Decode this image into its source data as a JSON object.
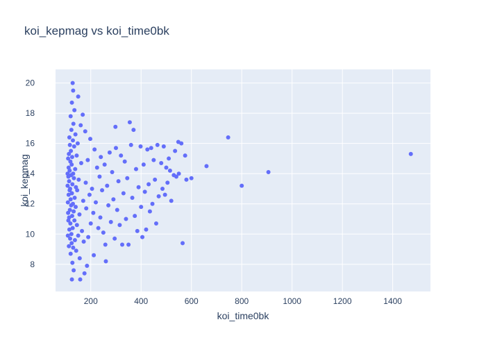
{
  "colors": {
    "plot_background": "#e5ecf6",
    "paper_background": "#ffffff",
    "marker": "#636efa",
    "text": "#2a3f5f",
    "grid": "#ffffff"
  },
  "chart_data": {
    "type": "scatter",
    "title": "koi_kepmag vs koi_time0bk",
    "xlabel": "koi_time0bk",
    "ylabel": "koi_kepmag",
    "xlim": [
      60,
      1550
    ],
    "ylim": [
      6.2,
      20.9
    ],
    "xticks": [
      200,
      400,
      600,
      800,
      1000,
      1200,
      1400
    ],
    "xtick_labels": [
      "200",
      "400",
      "600",
      "800",
      "1000",
      "1200",
      "1400"
    ],
    "yticks": [
      8,
      10,
      12,
      14,
      16,
      18,
      20
    ],
    "ytick_labels": [
      "8",
      "10",
      "12",
      "14",
      "16",
      "18",
      "20"
    ],
    "grid": true,
    "legend": "none",
    "series": [
      {
        "color": "#636efa",
        "points": [
          [
            1472,
            15.3
          ],
          [
            906,
            14.1
          ],
          [
            800,
            13.2
          ],
          [
            746,
            16.4
          ],
          [
            660,
            14.5
          ],
          [
            600,
            13.7
          ],
          [
            580,
            13.6
          ],
          [
            575,
            15.2
          ],
          [
            560,
            16.0
          ],
          [
            565,
            9.4
          ],
          [
            550,
            14.0
          ],
          [
            548,
            16.1
          ],
          [
            540,
            13.8
          ],
          [
            535,
            15.5
          ],
          [
            530,
            13.9
          ],
          [
            520,
            12.2
          ],
          [
            515,
            14.2
          ],
          [
            510,
            15.0
          ],
          [
            505,
            13.4
          ],
          [
            500,
            14.4
          ],
          [
            495,
            12.6
          ],
          [
            490,
            15.8
          ],
          [
            485,
            13.0
          ],
          [
            480,
            14.7
          ],
          [
            470,
            12.5
          ],
          [
            465,
            15.9
          ],
          [
            460,
            10.7
          ],
          [
            455,
            13.6
          ],
          [
            450,
            14.9
          ],
          [
            445,
            12.0
          ],
          [
            440,
            15.7
          ],
          [
            435,
            11.5
          ],
          [
            430,
            13.3
          ],
          [
            425,
            15.6
          ],
          [
            420,
            10.3
          ],
          [
            415,
            12.8
          ],
          [
            410,
            14.6
          ],
          [
            405,
            9.8
          ],
          [
            400,
            11.8
          ],
          [
            398,
            15.8
          ],
          [
            390,
            13.1
          ],
          [
            385,
            10.2
          ],
          [
            380,
            14.3
          ],
          [
            375,
            11.2
          ],
          [
            370,
            16.9
          ],
          [
            365,
            12.4
          ],
          [
            360,
            15.9
          ],
          [
            355,
            17.4
          ],
          [
            350,
            9.3
          ],
          [
            345,
            13.7
          ],
          [
            340,
            11.0
          ],
          [
            335,
            14.8
          ],
          [
            330,
            12.7
          ],
          [
            325,
            9.3
          ],
          [
            320,
            15.2
          ],
          [
            315,
            10.6
          ],
          [
            310,
            13.5
          ],
          [
            305,
            11.6
          ],
          [
            300,
            15.7
          ],
          [
            298,
            17.1
          ],
          [
            295,
            9.7
          ],
          [
            290,
            12.3
          ],
          [
            285,
            14.1
          ],
          [
            280,
            10.8
          ],
          [
            275,
            15.4
          ],
          [
            270,
            11.9
          ],
          [
            265,
            13.2
          ],
          [
            260,
            8.2
          ],
          [
            258,
            9.3
          ],
          [
            255,
            14.6
          ],
          [
            250,
            10.1
          ],
          [
            245,
            12.9
          ],
          [
            240,
            15.1
          ],
          [
            238,
            11.1
          ],
          [
            235,
            13.8
          ],
          [
            230,
            10.4
          ],
          [
            225,
            14.4
          ],
          [
            220,
            12.1
          ],
          [
            215,
            15.6
          ],
          [
            212,
            8.6
          ],
          [
            210,
            11.4
          ],
          [
            205,
            13.0
          ],
          [
            200,
            10.7
          ],
          [
            198,
            16.3
          ],
          [
            195,
            12.6
          ],
          [
            190,
            9.8
          ],
          [
            188,
            14.9
          ],
          [
            185,
            7.9
          ],
          [
            182,
            11.7
          ],
          [
            180,
            13.4
          ],
          [
            178,
            16.8
          ],
          [
            175,
            7.4
          ],
          [
            172,
            9.5
          ],
          [
            170,
            12.2
          ],
          [
            168,
            17.9
          ],
          [
            165,
            10.2
          ],
          [
            162,
            14.7
          ],
          [
            160,
            17.2
          ],
          [
            158,
            7.0
          ],
          [
            156,
            8.4
          ],
          [
            155,
            11.3
          ],
          [
            152,
            13.6
          ],
          [
            150,
            19.1
          ],
          [
            150,
            9.9
          ],
          [
            148,
            16.0
          ],
          [
            146,
            12.9
          ],
          [
            145,
            10.6
          ],
          [
            144,
            15.2
          ],
          [
            142,
            8.9
          ],
          [
            141,
            13.1
          ],
          [
            140,
            11.8
          ],
          [
            139,
            16.6
          ],
          [
            138,
            14.3
          ],
          [
            137,
            9.6
          ],
          [
            136,
            12.4
          ],
          [
            135,
            18.2
          ],
          [
            135,
            10.9
          ],
          [
            134,
            15.8
          ],
          [
            133,
            13.7
          ],
          [
            132,
            7.6
          ],
          [
            132,
            11.5
          ],
          [
            131,
            17.3
          ],
          [
            130,
            19.5
          ],
          [
            130,
            14.0
          ],
          [
            130,
            9.1
          ],
          [
            129,
            12.0
          ],
          [
            129,
            16.2
          ],
          [
            128,
            20.0
          ],
          [
            128,
            10.4
          ],
          [
            127,
            13.3
          ],
          [
            127,
            8.1
          ],
          [
            126,
            15.1
          ],
          [
            126,
            11.2
          ],
          [
            125,
            18.7
          ],
          [
            125,
            7.0
          ],
          [
            125,
            12.7
          ],
          [
            124,
            14.6
          ],
          [
            124,
            9.4
          ],
          [
            123,
            16.9
          ],
          [
            123,
            10.0
          ],
          [
            122,
            13.9
          ],
          [
            122,
            11.9
          ],
          [
            121,
            15.5
          ],
          [
            120,
            8.7
          ],
          [
            120,
            12.3
          ],
          [
            120,
            17.8
          ],
          [
            119,
            14.8
          ],
          [
            119,
            10.7
          ],
          [
            118,
            13.0
          ],
          [
            118,
            9.7
          ],
          [
            117,
            15.9
          ],
          [
            117,
            11.6
          ],
          [
            116,
            12.9
          ],
          [
            116,
            14.2
          ],
          [
            115,
            10.3
          ],
          [
            115,
            16.4
          ],
          [
            114,
            13.5
          ],
          [
            114,
            11.1
          ],
          [
            113,
            9.2
          ],
          [
            113,
            15.3
          ],
          [
            112,
            12.6
          ],
          [
            112,
            14.4
          ],
          [
            111,
            10.9
          ],
          [
            111,
            13.8
          ],
          [
            110,
            11.4
          ],
          [
            110,
            15.0
          ],
          [
            109,
            12.1
          ],
          [
            109,
            9.9
          ],
          [
            108,
            13.2
          ],
          [
            108,
            14.0
          ]
        ]
      }
    ]
  }
}
